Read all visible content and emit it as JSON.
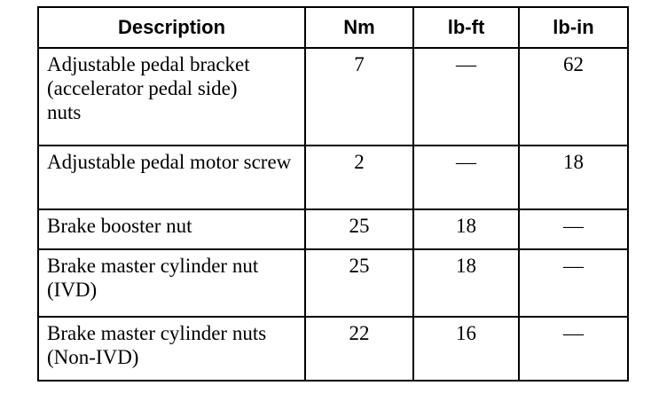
{
  "table": {
    "headers": [
      "Description",
      "Nm",
      "lb-ft",
      "lb-in"
    ],
    "rows": [
      {
        "description": "Adjustable pedal bracket (accelerator pedal side) nuts",
        "nm": "7",
        "lbft": "—",
        "lbin": "62"
      },
      {
        "description": "Adjustable pedal motor screw",
        "nm": "2",
        "lbft": "—",
        "lbin": "18"
      },
      {
        "description": "Brake booster nut",
        "nm": "25",
        "lbft": "18",
        "lbin": "—"
      },
      {
        "description": "Brake master cylinder nut (IVD)",
        "nm": "25",
        "lbft": "18",
        "lbin": "—"
      },
      {
        "description": "Brake master cylinder nuts (Non-IVD)",
        "nm": "22",
        "lbft": "16",
        "lbin": "—"
      }
    ]
  }
}
